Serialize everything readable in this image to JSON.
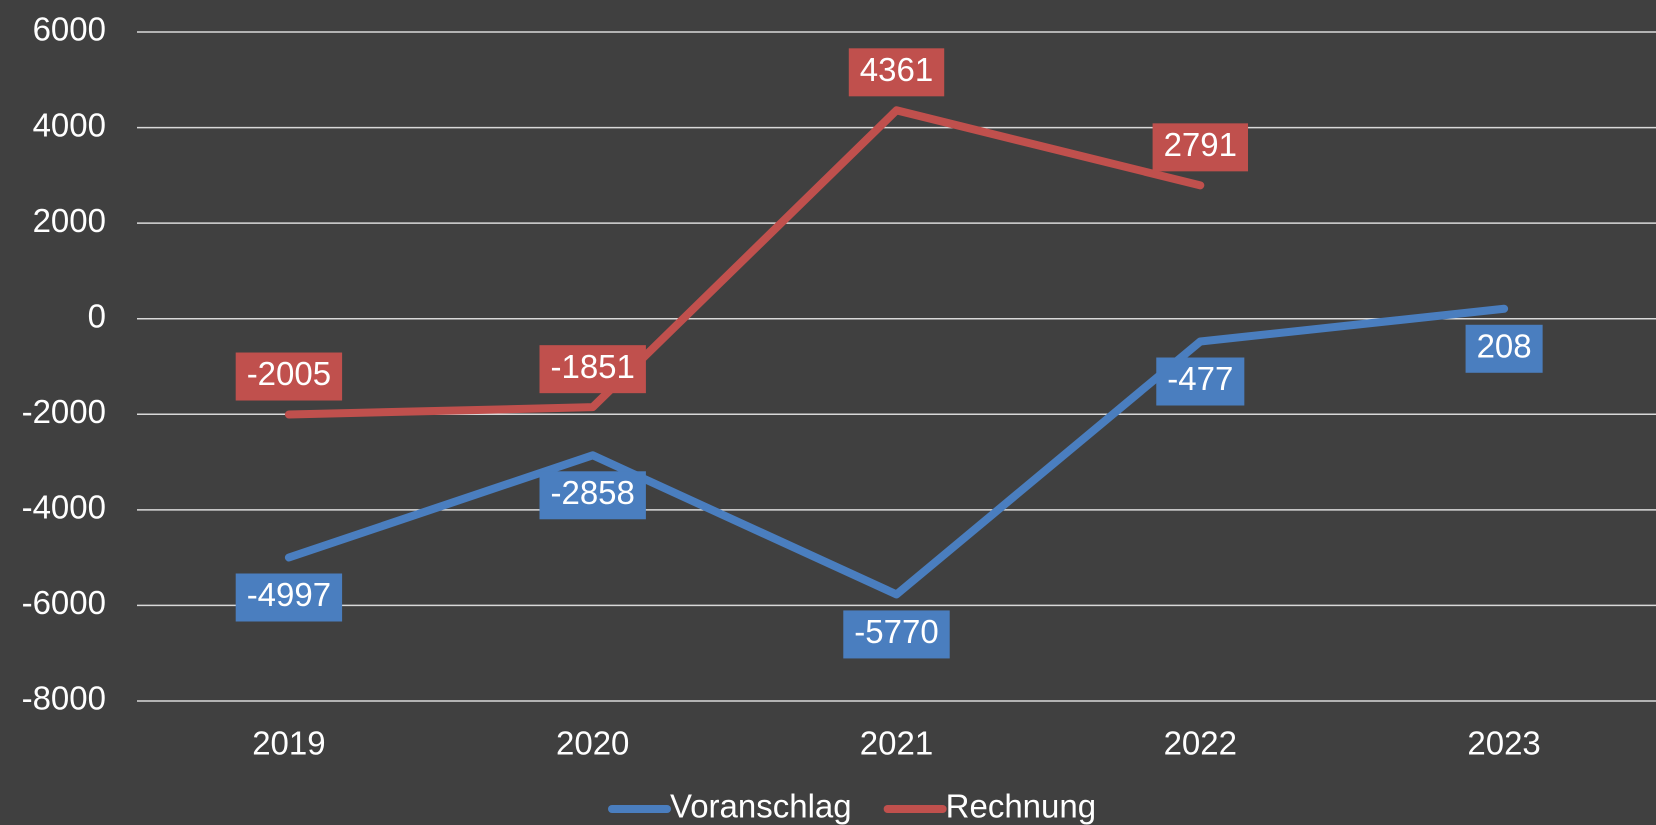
{
  "chart_data": {
    "type": "line",
    "categories": [
      "2019",
      "2020",
      "2021",
      "2022",
      "2023"
    ],
    "series": [
      {
        "name": "Voranschlag",
        "color": "#4a7ebf",
        "values": [
          -4997,
          -2858,
          -5770,
          -477,
          208
        ]
      },
      {
        "name": "Rechnung",
        "color": "#c0504d",
        "values": [
          -2005,
          -1851,
          4361,
          2791,
          null
        ]
      }
    ],
    "ylim": [
      -8000,
      6000
    ],
    "yticks": [
      -8000,
      -6000,
      -4000,
      -2000,
      0,
      2000,
      4000,
      6000
    ],
    "grid": true,
    "legend": "bottom"
  }
}
